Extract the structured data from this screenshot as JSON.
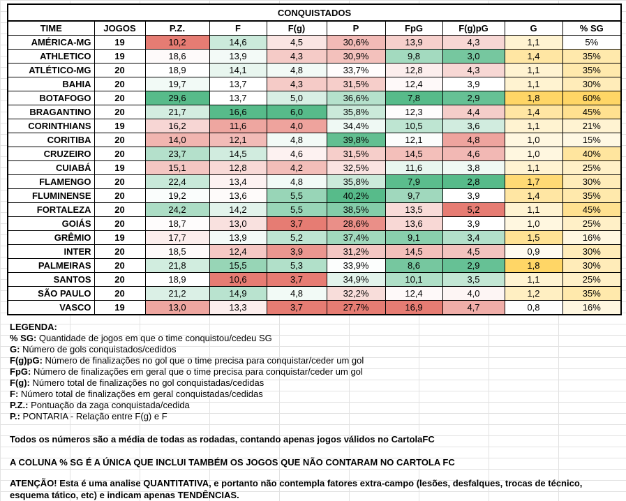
{
  "table": {
    "title": "CONQUISTADOS",
    "headers": [
      "TIME",
      "JOGOS",
      "P.Z.",
      "F",
      "F(g)",
      "P",
      "FpG",
      "F(g)pG",
      "G",
      "% SG"
    ],
    "rows": [
      {
        "team": "AMÉRICA-MG",
        "jogos": "19",
        "pz": "10,2",
        "f": "14,6",
        "fg": "4,5",
        "p": "30,6%",
        "fpg": "13,9",
        "fgpg": "4,3",
        "g": "1,1",
        "sg": "5%"
      },
      {
        "team": "ATHLETICO",
        "jogos": "19",
        "pz": "18,6",
        "f": "13,9",
        "fg": "4,3",
        "p": "30,9%",
        "fpg": "9,8",
        "fgpg": "3,0",
        "g": "1,4",
        "sg": "35%"
      },
      {
        "team": "ATLÉTICO-MG",
        "jogos": "20",
        "pz": "18,9",
        "f": "14,1",
        "fg": "4,8",
        "p": "33,7%",
        "fpg": "12,8",
        "fgpg": "4,3",
        "g": "1,1",
        "sg": "35%"
      },
      {
        "team": "BAHIA",
        "jogos": "20",
        "pz": "19,7",
        "f": "13,7",
        "fg": "4,3",
        "p": "31,5%",
        "fpg": "12,4",
        "fgpg": "3,9",
        "g": "1,1",
        "sg": "30%"
      },
      {
        "team": "BOTAFOGO",
        "jogos": "20",
        "pz": "29,6",
        "f": "13,7",
        "fg": "5,0",
        "p": "36,6%",
        "fpg": "7,8",
        "fgpg": "2,9",
        "g": "1,8",
        "sg": "60%"
      },
      {
        "team": "BRAGANTINO",
        "jogos": "20",
        "pz": "21,7",
        "f": "16,6",
        "fg": "6,0",
        "p": "35,8%",
        "fpg": "12,3",
        "fgpg": "4,4",
        "g": "1,4",
        "sg": "45%"
      },
      {
        "team": "CORINTHIANS",
        "jogos": "19",
        "pz": "16,2",
        "f": "11,6",
        "fg": "4,0",
        "p": "34,4%",
        "fpg": "10,5",
        "fgpg": "3,6",
        "g": "1,1",
        "sg": "21%"
      },
      {
        "team": "CORITIBA",
        "jogos": "20",
        "pz": "14,0",
        "f": "12,1",
        "fg": "4,8",
        "p": "39,8%",
        "fpg": "12,1",
        "fgpg": "4,8",
        "g": "1,0",
        "sg": "15%"
      },
      {
        "team": "CRUZEIRO",
        "jogos": "20",
        "pz": "23,7",
        "f": "14,5",
        "fg": "4,6",
        "p": "31,5%",
        "fpg": "14,5",
        "fgpg": "4,6",
        "g": "1,0",
        "sg": "40%"
      },
      {
        "team": "CUIABÁ",
        "jogos": "19",
        "pz": "15,1",
        "f": "12,8",
        "fg": "4,2",
        "p": "32,5%",
        "fpg": "11,6",
        "fgpg": "3,8",
        "g": "1,1",
        "sg": "25%"
      },
      {
        "team": "FLAMENGO",
        "jogos": "20",
        "pz": "22,4",
        "f": "13,4",
        "fg": "4,8",
        "p": "35,8%",
        "fpg": "7,9",
        "fgpg": "2,8",
        "g": "1,7",
        "sg": "30%"
      },
      {
        "team": "FLUMINENSE",
        "jogos": "20",
        "pz": "19,2",
        "f": "13,6",
        "fg": "5,5",
        "p": "40,2%",
        "fpg": "9,7",
        "fgpg": "3,9",
        "g": "1,4",
        "sg": "35%"
      },
      {
        "team": "FORTALEZA",
        "jogos": "20",
        "pz": "24,2",
        "f": "14,2",
        "fg": "5,5",
        "p": "38,5%",
        "fpg": "13,5",
        "fgpg": "5,2",
        "g": "1,1",
        "sg": "45%"
      },
      {
        "team": "GOIÁS",
        "jogos": "20",
        "pz": "18,7",
        "f": "13,0",
        "fg": "3,7",
        "p": "28,6%",
        "fpg": "13,6",
        "fgpg": "3,9",
        "g": "1,0",
        "sg": "25%"
      },
      {
        "team": "GRÊMIO",
        "jogos": "19",
        "pz": "17,7",
        "f": "13,9",
        "fg": "5,2",
        "p": "37,4%",
        "fpg": "9,1",
        "fgpg": "3,4",
        "g": "1,5",
        "sg": "16%"
      },
      {
        "team": "INTER",
        "jogos": "20",
        "pz": "18,5",
        "f": "12,4",
        "fg": "3,9",
        "p": "31,2%",
        "fpg": "14,5",
        "fgpg": "4,5",
        "g": "0,9",
        "sg": "30%"
      },
      {
        "team": "PALMEIRAS",
        "jogos": "20",
        "pz": "21,8",
        "f": "15,5",
        "fg": "5,3",
        "p": "33,9%",
        "fpg": "8,6",
        "fgpg": "2,9",
        "g": "1,8",
        "sg": "30%"
      },
      {
        "team": "SANTOS",
        "jogos": "20",
        "pz": "18,9",
        "f": "10,6",
        "fg": "3,7",
        "p": "34,9%",
        "fpg": "10,1",
        "fgpg": "3,5",
        "g": "1,1",
        "sg": "25%"
      },
      {
        "team": "SÃO PAULO",
        "jogos": "20",
        "pz": "21,2",
        "f": "14,9",
        "fg": "4,8",
        "p": "32,2%",
        "fpg": "12,4",
        "fgpg": "4,0",
        "g": "1,2",
        "sg": "35%"
      },
      {
        "team": "VASCO",
        "jogos": "19",
        "pz": "13,0",
        "f": "13,3",
        "fg": "3,7",
        "p": "27,7%",
        "fpg": "16,9",
        "fgpg": "4,7",
        "g": "0,8",
        "sg": "16%"
      }
    ]
  },
  "legend": {
    "title": "LEGENDA:",
    "items": [
      {
        "key": "% SG:",
        "desc": " Quantidade de jogos em que o time conquistou/cedeu SG"
      },
      {
        "key": "G:",
        "desc": " Número de gols conquistados/cedidos"
      },
      {
        "key": "F(g)pG:",
        "desc": " Número de finalizações no gol que o time precisa para conquistar/ceder um gol"
      },
      {
        "key": "FpG:",
        "desc": " Número de finalizações em geral que o time precisa para conquistar/ceder um gol"
      },
      {
        "key": "F(g):",
        "desc": " Número total de finalizações no gol conquistadas/cedidas"
      },
      {
        "key": "F:",
        "desc": " Número total de finalizações em geral conquistadas/cedidas"
      },
      {
        "key": "P.Z.:",
        "desc": " Pontuação da zaga conquistada/cedida"
      },
      {
        "key": "P.:",
        "desc": " PONTARIA - Relação entre F(g) e F"
      }
    ]
  },
  "notes": {
    "note1": "Todos os números são a média de todas as rodadas, contando apenas jogos válidos no CartolaFC",
    "note2": "A COLUNA % SG É A ÚNICA QUE INCLUI TAMBÉM OS JOGOS QUE NÃO CONTARAM NO CARTOLA FC",
    "note3": "ATENÇÃO! Esta é uma analise QUANTITATIVA, e portanto não contempla fatores extra-campo (lesões, desfalques, trocas de técnico, esquema tático, etc) e indicam apenas TENDÊNCIAS."
  },
  "colors": {
    "header_bg": "#ffffff",
    "low_red": "#e67c73",
    "high_green": "#57bb8a",
    "white": "#ffffff",
    "gold": "#ffd666"
  }
}
